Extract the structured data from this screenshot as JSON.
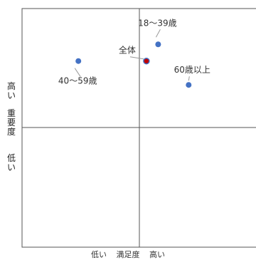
{
  "chart_data": {
    "type": "scatter",
    "title": "",
    "xlabel": {
      "low": "低い",
      "name": "満足度",
      "high": "高い"
    },
    "ylabel": {
      "high": "高い",
      "name": "重要度",
      "low": "低い"
    },
    "quadrant_lines": true,
    "series": [
      {
        "label": "18〜39歳",
        "satisfaction": 0.58,
        "importance": 0.85,
        "color": "#4472C4"
      },
      {
        "label": "全体",
        "satisfaction": 0.53,
        "importance": 0.78,
        "color": "#C00000"
      },
      {
        "label": "40〜59歳",
        "satisfaction": 0.24,
        "importance": 0.78,
        "color": "#4472C4"
      },
      {
        "label": "60歳以上",
        "satisfaction": 0.71,
        "importance": 0.68,
        "color": "#4472C4"
      }
    ]
  }
}
